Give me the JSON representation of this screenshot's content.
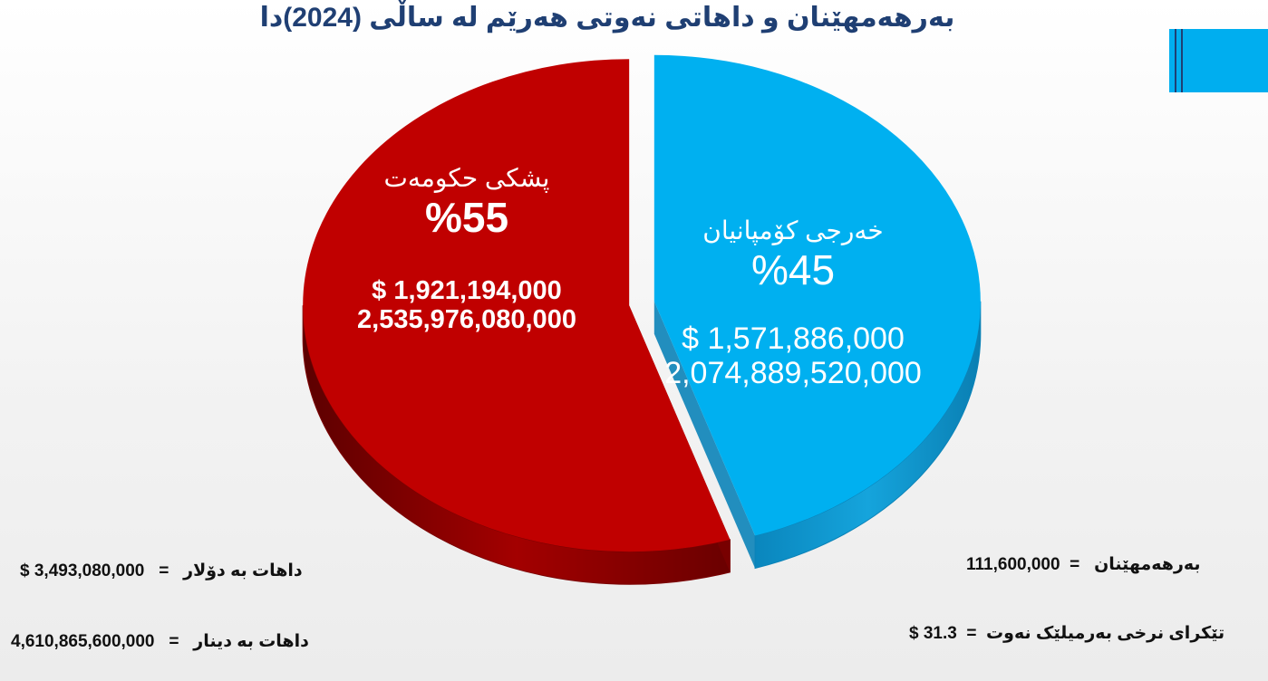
{
  "title": "بەرهەمهێنان و داهاتی نەوتی هەرێم لە ساڵی (2024)دا",
  "colors": {
    "title": "#1f3f73",
    "accent": "#00aeef",
    "government": "#c00000",
    "companies": "#00b0f0"
  },
  "chart_data": {
    "type": "pie",
    "slices": [
      {
        "name": "پشکی حکومەت",
        "percent_label": "%55",
        "value": 55,
        "usd_label": "$ 1,921,194,000",
        "iqd_label": "2,535,976,080,000"
      },
      {
        "name": "خەرجی کۆمپانیان",
        "percent_label": "%45",
        "value": 45,
        "usd_label": "$ 1,571,886,000",
        "iqd_label": "2,074,889,520,000"
      }
    ]
  },
  "stats": {
    "revenue_usd_label": "داهات بە دۆلار",
    "revenue_usd_value": "$ 3,493,080,000",
    "revenue_iqd_label": "داهات بە دینار",
    "revenue_iqd_value": "4,610,865,600,000",
    "production_label": "بەرهەمهێنان",
    "production_value": "111,600,000",
    "avg_price_label": "تێکرای نرخی بەرمیلێک نەوت",
    "avg_price_value": "$ 31.3"
  }
}
